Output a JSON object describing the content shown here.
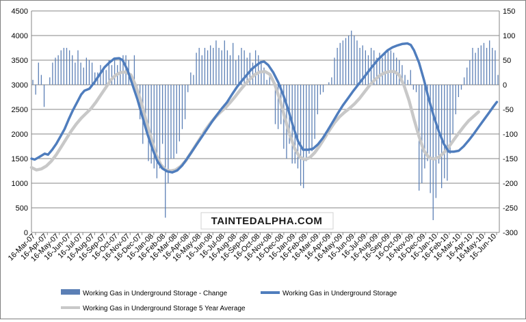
{
  "chart_data": {
    "type": "bar+line",
    "title": "",
    "watermark": "TAINTEDALPHA.COM",
    "left_axis": {
      "ticks": [
        0,
        500,
        1000,
        1500,
        2000,
        2500,
        3000,
        3500,
        4000,
        4500
      ],
      "range": [
        0,
        4500
      ]
    },
    "right_axis": {
      "ticks": [
        -300,
        -250,
        -200,
        -150,
        -100,
        -50,
        0,
        50,
        100,
        150
      ],
      "range": [
        -300,
        150
      ]
    },
    "x_tick_labels": [
      "16-Mar-07",
      "16-Apr-07",
      "16-May-07",
      "16-Jun-07",
      "16-Jul-07",
      "16-Aug-07",
      "16-Sep-07",
      "16-Oct-07",
      "16-Nov-07",
      "16-Dec-07",
      "16-Jan-08",
      "16-Feb-08",
      "16-Mar-08",
      "16-Apr-08",
      "16-May-08",
      "16-Jun-08",
      "16-Jul-08",
      "16-Aug-08",
      "16-Sep-08",
      "16-Oct-08",
      "16-Nov-08",
      "16-Dec-08",
      "16-Jan-09",
      "16-Feb-09",
      "16-Mar-09",
      "16-Apr-09",
      "16-May-09",
      "16-Jun-09",
      "16-Jul-09",
      "16-Aug-09",
      "16-Sep-09",
      "16-Oct-09",
      "16-Nov-09",
      "16-Dec-09",
      "16-Jan-10",
      "16-Feb-10",
      "16-Mar-10",
      "16-Apr-10",
      "16-May-10",
      "16-Jun-10"
    ],
    "series": [
      {
        "name": "Working Gas in Underground Storage - Change",
        "type": "bar",
        "axis": "right",
        "color": "#5b7fb5",
        "values": [
          10,
          -20,
          45,
          20,
          -45,
          0,
          15,
          45,
          55,
          60,
          70,
          75,
          75,
          70,
          60,
          45,
          70,
          45,
          35,
          55,
          50,
          45,
          25,
          25,
          40,
          35,
          30,
          50,
          40,
          55,
          40,
          55,
          60,
          60,
          50,
          15,
          60,
          -5,
          -70,
          -120,
          -80,
          -155,
          -160,
          -170,
          -190,
          -170,
          -120,
          -270,
          -200,
          -150,
          -150,
          -140,
          -115,
          -90,
          -70,
          -15,
          25,
          20,
          65,
          75,
          60,
          75,
          70,
          80,
          75,
          90,
          75,
          70,
          90,
          70,
          60,
          85,
          50,
          60,
          75,
          70,
          55,
          65,
          45,
          70,
          60,
          45,
          35,
          10,
          20,
          0,
          -80,
          -90,
          -80,
          -130,
          -150,
          -120,
          -160,
          -160,
          -170,
          -205,
          -210,
          -155,
          -140,
          -135,
          -110,
          -60,
          -20,
          -15,
          0,
          5,
          15,
          55,
          75,
          85,
          90,
          95,
          100,
          110,
          100,
          90,
          75,
          80,
          70,
          60,
          75,
          70,
          55,
          65,
          55,
          65,
          70,
          70,
          65,
          55,
          50,
          40,
          20,
          10,
          30,
          -10,
          -15,
          -215,
          -200,
          -170,
          -155,
          -220,
          -275,
          -230,
          -160,
          -210,
          -190,
          -195,
          -140,
          -100,
          -60,
          -25,
          -10,
          15,
          35,
          50,
          75,
          65,
          75,
          80,
          85,
          75,
          90,
          75,
          70,
          20
        ]
      },
      {
        "name": "Working Gas in Underground Storage",
        "type": "line",
        "axis": "left",
        "color": "#4f7dbd",
        "points": [
          [
            0,
            1500
          ],
          [
            4,
            1480
          ],
          [
            8,
            1520
          ],
          [
            12,
            1560
          ],
          [
            16,
            1600
          ],
          [
            20,
            1580
          ],
          [
            25,
            1680
          ],
          [
            30,
            1800
          ],
          [
            35,
            1950
          ],
          [
            40,
            2100
          ],
          [
            45,
            2300
          ],
          [
            50,
            2480
          ],
          [
            55,
            2640
          ],
          [
            60,
            2800
          ],
          [
            64,
            2880
          ],
          [
            70,
            2920
          ],
          [
            76,
            3050
          ],
          [
            82,
            3200
          ],
          [
            88,
            3350
          ],
          [
            94,
            3450
          ],
          [
            100,
            3530
          ],
          [
            106,
            3540
          ],
          [
            110,
            3500
          ],
          [
            116,
            3300
          ],
          [
            122,
            3000
          ],
          [
            128,
            2700
          ],
          [
            134,
            2350
          ],
          [
            140,
            2000
          ],
          [
            146,
            1700
          ],
          [
            152,
            1450
          ],
          [
            158,
            1300
          ],
          [
            164,
            1240
          ],
          [
            170,
            1220
          ],
          [
            176,
            1260
          ],
          [
            182,
            1360
          ],
          [
            188,
            1500
          ],
          [
            194,
            1650
          ],
          [
            200,
            1800
          ],
          [
            206,
            1950
          ],
          [
            212,
            2100
          ],
          [
            218,
            2250
          ],
          [
            224,
            2390
          ],
          [
            230,
            2520
          ],
          [
            236,
            2640
          ],
          [
            242,
            2800
          ],
          [
            248,
            2950
          ],
          [
            254,
            3080
          ],
          [
            260,
            3200
          ],
          [
            266,
            3320
          ],
          [
            272,
            3400
          ],
          [
            277,
            3460
          ],
          [
            281,
            3470
          ],
          [
            286,
            3400
          ],
          [
            292,
            3250
          ],
          [
            298,
            3050
          ],
          [
            304,
            2800
          ],
          [
            310,
            2500
          ],
          [
            316,
            2150
          ],
          [
            322,
            1850
          ],
          [
            328,
            1680
          ],
          [
            334,
            1680
          ],
          [
            340,
            1700
          ],
          [
            346,
            1790
          ],
          [
            352,
            1920
          ],
          [
            358,
            2080
          ],
          [
            364,
            2250
          ],
          [
            370,
            2420
          ],
          [
            376,
            2580
          ],
          [
            382,
            2720
          ],
          [
            388,
            2860
          ],
          [
            394,
            2990
          ],
          [
            400,
            3120
          ],
          [
            406,
            3250
          ],
          [
            412,
            3380
          ],
          [
            418,
            3500
          ],
          [
            424,
            3600
          ],
          [
            430,
            3700
          ],
          [
            436,
            3760
          ],
          [
            442,
            3800
          ],
          [
            448,
            3830
          ],
          [
            454,
            3840
          ],
          [
            458,
            3810
          ],
          [
            462,
            3700
          ],
          [
            468,
            3450
          ],
          [
            474,
            3100
          ],
          [
            480,
            2700
          ],
          [
            486,
            2350
          ],
          [
            492,
            2050
          ],
          [
            498,
            1800
          ],
          [
            504,
            1640
          ],
          [
            510,
            1640
          ],
          [
            516,
            1660
          ],
          [
            522,
            1750
          ],
          [
            528,
            1870
          ],
          [
            534,
            2000
          ],
          [
            540,
            2140
          ],
          [
            546,
            2280
          ],
          [
            552,
            2420
          ],
          [
            558,
            2560
          ],
          [
            562,
            2650
          ]
        ]
      },
      {
        "name": "Working Gas in Underground Storage 5 Year Average",
        "type": "line",
        "axis": "left",
        "color": "#c8c8c8",
        "points": [
          [
            0,
            1320
          ],
          [
            6,
            1270
          ],
          [
            12,
            1290
          ],
          [
            18,
            1350
          ],
          [
            24,
            1450
          ],
          [
            30,
            1580
          ],
          [
            36,
            1740
          ],
          [
            42,
            1900
          ],
          [
            48,
            2060
          ],
          [
            54,
            2200
          ],
          [
            60,
            2320
          ],
          [
            66,
            2420
          ],
          [
            72,
            2520
          ],
          [
            78,
            2650
          ],
          [
            84,
            2800
          ],
          [
            90,
            2950
          ],
          [
            96,
            3100
          ],
          [
            102,
            3200
          ],
          [
            108,
            3250
          ],
          [
            114,
            3260
          ],
          [
            120,
            3200
          ],
          [
            126,
            2980
          ],
          [
            132,
            2680
          ],
          [
            138,
            2300
          ],
          [
            144,
            1950
          ],
          [
            150,
            1600
          ],
          [
            156,
            1380
          ],
          [
            162,
            1270
          ],
          [
            168,
            1250
          ],
          [
            174,
            1270
          ],
          [
            180,
            1340
          ],
          [
            186,
            1450
          ],
          [
            192,
            1600
          ],
          [
            198,
            1760
          ],
          [
            204,
            1920
          ],
          [
            210,
            2080
          ],
          [
            216,
            2220
          ],
          [
            222,
            2340
          ],
          [
            228,
            2440
          ],
          [
            234,
            2530
          ],
          [
            240,
            2640
          ],
          [
            246,
            2760
          ],
          [
            252,
            2890
          ],
          [
            258,
            3010
          ],
          [
            264,
            3120
          ],
          [
            270,
            3210
          ],
          [
            276,
            3260
          ],
          [
            282,
            3270
          ],
          [
            288,
            3210
          ],
          [
            294,
            3000
          ],
          [
            300,
            2700
          ],
          [
            306,
            2330
          ],
          [
            312,
            1980
          ],
          [
            318,
            1700
          ],
          [
            324,
            1530
          ],
          [
            330,
            1480
          ],
          [
            336,
            1520
          ],
          [
            342,
            1620
          ],
          [
            348,
            1760
          ],
          [
            354,
            1920
          ],
          [
            360,
            2080
          ],
          [
            366,
            2230
          ],
          [
            372,
            2350
          ],
          [
            378,
            2440
          ],
          [
            384,
            2520
          ],
          [
            390,
            2610
          ],
          [
            396,
            2720
          ],
          [
            402,
            2850
          ],
          [
            408,
            2980
          ],
          [
            414,
            3090
          ],
          [
            420,
            3180
          ],
          [
            426,
            3240
          ],
          [
            432,
            3270
          ],
          [
            438,
            3270
          ],
          [
            444,
            3200
          ],
          [
            450,
            2980
          ],
          [
            456,
            2680
          ],
          [
            462,
            2300
          ],
          [
            468,
            1950
          ],
          [
            474,
            1660
          ],
          [
            480,
            1520
          ],
          [
            486,
            1490
          ],
          [
            492,
            1530
          ],
          [
            498,
            1620
          ],
          [
            504,
            1740
          ],
          [
            510,
            1880
          ],
          [
            516,
            2020
          ],
          [
            522,
            2150
          ],
          [
            528,
            2270
          ],
          [
            534,
            2360
          ],
          [
            540,
            2450
          ]
        ]
      }
    ],
    "legend_position": "bottom",
    "grid": "horizontal"
  }
}
